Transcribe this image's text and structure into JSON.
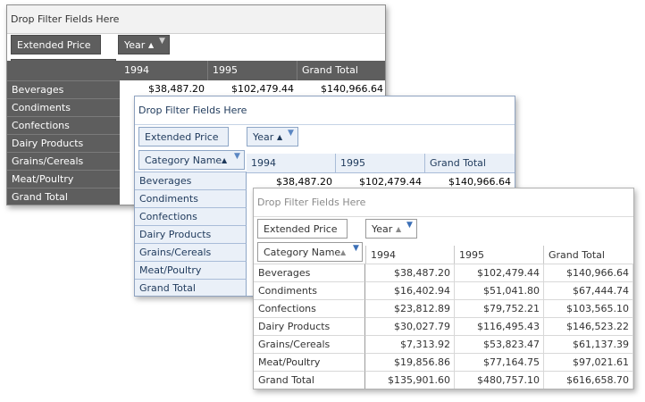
{
  "filter_area_text": "Drop Filter Fields Here",
  "data_field": "Extended Price",
  "column_field": "Year",
  "row_field": "Category Name",
  "columns": [
    "1994",
    "1995",
    "Grand Total"
  ],
  "rows": [
    {
      "label": "Beverages",
      "v1994": "$38,487.20",
      "v1995": "$102,479.44",
      "total": "$140,966.64"
    },
    {
      "label": "Condiments",
      "v1994": "$16,402.94",
      "v1995": "$51,041.80",
      "total": "$67,444.74"
    },
    {
      "label": "Confections",
      "v1994": "$23,812.89",
      "v1995": "$79,752.21",
      "total": "$103,565.10"
    },
    {
      "label": "Dairy Products",
      "v1994": "$30,027.79",
      "v1995": "$116,495.43",
      "total": "$146,523.22"
    },
    {
      "label": "Grains/Cereals",
      "v1994": "$7,313.92",
      "v1995": "$53,823.47",
      "total": "$61,137.39"
    },
    {
      "label": "Meat/Poultry",
      "v1994": "$19,856.86",
      "v1995": "$77,164.75",
      "total": "$97,021.61"
    },
    {
      "label": "Grand Total",
      "v1994": "$135,901.60",
      "v1995": "$480,757.10",
      "total": "$616,658.70"
    }
  ],
  "icons": {
    "sort": "sort-ascending-icon",
    "filter": "filter-icon"
  },
  "colors": {
    "dark_header": "#5e5e5e",
    "blue_header": "#eaf0f8",
    "blue_text": "#1e395b",
    "filter_icon_blue": "#3b6fb6"
  }
}
